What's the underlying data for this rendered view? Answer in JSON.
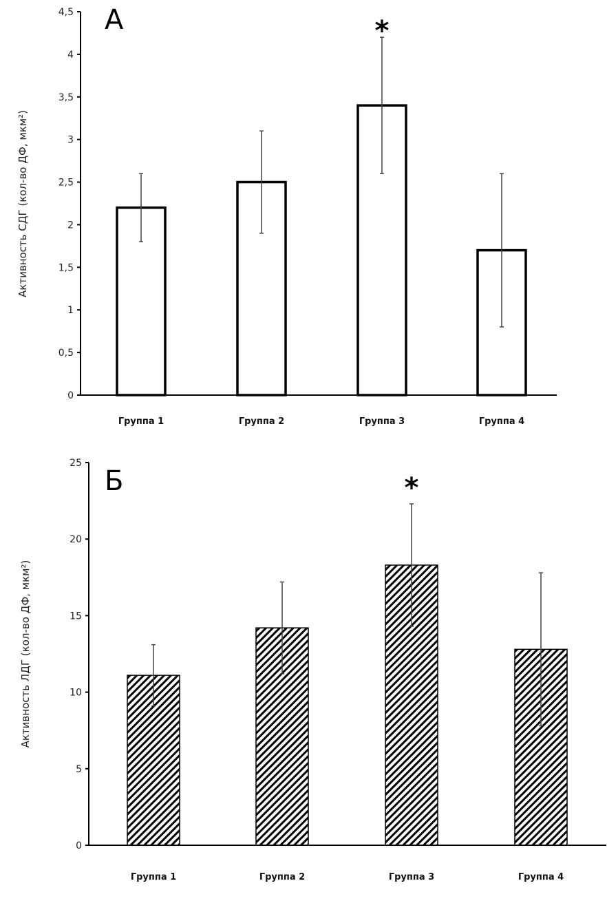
{
  "chart_data": [
    {
      "type": "bar",
      "panel": "А",
      "title": "",
      "xlabel": "",
      "ylabel": "Активность СДГ (кол-во ДФ, мкм²)",
      "categories": [
        "Группа 1",
        "Группа 2",
        "Группа 3",
        "Группа 4"
      ],
      "values": [
        2.2,
        2.5,
        3.4,
        1.7
      ],
      "error_low": [
        1.8,
        1.9,
        2.6,
        0.8
      ],
      "error_high": [
        2.6,
        3.1,
        4.2,
        2.6
      ],
      "significance": [
        "",
        "",
        "*",
        ""
      ],
      "ylim": [
        0,
        4.5
      ],
      "yticks": [
        0,
        0.5,
        1,
        1.5,
        2,
        2.5,
        3,
        3.5,
        4,
        4.5
      ],
      "ytick_labels": [
        "0",
        "0,5",
        "1",
        "1,5",
        "2",
        "2,5",
        "3",
        "3,5",
        "4",
        "4,5"
      ],
      "fill": "none",
      "grid": false,
      "legend": "none"
    },
    {
      "type": "bar",
      "panel": "Б",
      "title": "",
      "xlabel": "",
      "ylabel": "Активность ЛДГ (кол-во ДФ, мкм²)",
      "categories": [
        "Группа 1",
        "Группа 2",
        "Группа 3",
        "Группа 4"
      ],
      "values": [
        11.1,
        14.2,
        18.3,
        12.8
      ],
      "error_low": [
        9.1,
        11.2,
        14.3,
        7.8
      ],
      "error_high": [
        13.1,
        17.2,
        22.3,
        17.8
      ],
      "significance": [
        "",
        "",
        "*",
        ""
      ],
      "ylim": [
        0,
        25
      ],
      "yticks": [
        0,
        5,
        10,
        15,
        20,
        25
      ],
      "ytick_labels": [
        "0",
        "5",
        "10",
        "15",
        "20",
        "25"
      ],
      "fill": "hatched",
      "grid": false,
      "legend": "none"
    }
  ],
  "colors": {
    "ink": "#000000",
    "errorbar": "#444444"
  }
}
